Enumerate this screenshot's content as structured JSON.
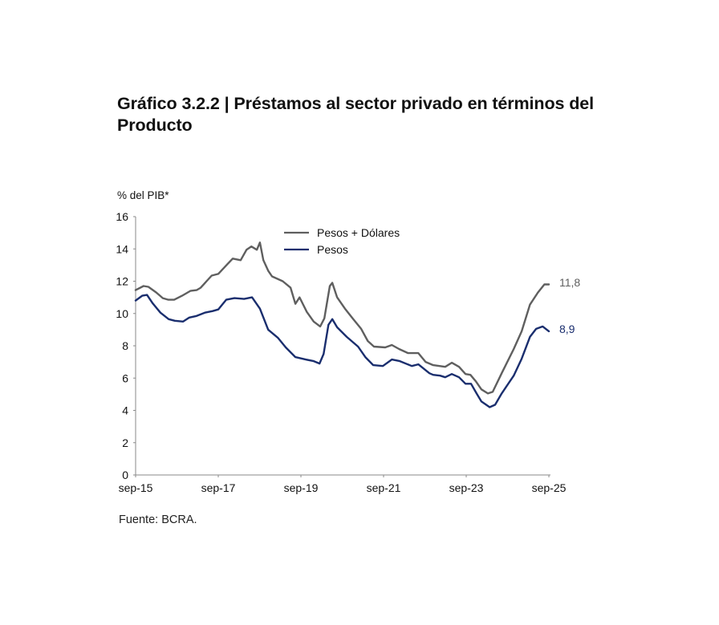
{
  "title": "Gráfico 3.2.2 | Préstamos al sector privado en términos del Producto",
  "source": "Fuente: BCRA.",
  "chart_data": {
    "type": "line",
    "title": "Gráfico 3.2.2 | Préstamos al sector privado en términos del Producto",
    "xlabel": "",
    "ylabel": "% del PIB*",
    "ylim": [
      0,
      16
    ],
    "yticks": [
      "0",
      "2",
      "4",
      "6",
      "8",
      "10",
      "12",
      "14",
      "16"
    ],
    "xlim_months_since_sep15": [
      0,
      120
    ],
    "xticks": [
      {
        "label": "sep-15",
        "month": 0
      },
      {
        "label": "sep-17",
        "month": 24
      },
      {
        "label": "sep-19",
        "month": 48
      },
      {
        "label": "sep-21",
        "month": 72
      },
      {
        "label": "sep-23",
        "month": 96
      },
      {
        "label": "sep-25",
        "month": 120
      }
    ],
    "grid": false,
    "legend_position": "top-center",
    "x_unit": "months since sep-15",
    "series": [
      {
        "name": "Pesos + Dólares",
        "color": "#5f5f5f",
        "end_label": "11,8",
        "points": [
          [
            0,
            11.45
          ],
          [
            2.3,
            11.7
          ],
          [
            3.7,
            11.65
          ],
          [
            6,
            11.3
          ],
          [
            7.9,
            10.95
          ],
          [
            9.5,
            10.85
          ],
          [
            11.2,
            10.85
          ],
          [
            13.5,
            11.1
          ],
          [
            15.9,
            11.4
          ],
          [
            17.7,
            11.45
          ],
          [
            18.9,
            11.6
          ],
          [
            20.8,
            12.05
          ],
          [
            22.1,
            12.35
          ],
          [
            24,
            12.45
          ],
          [
            26.6,
            13.05
          ],
          [
            28.2,
            13.4
          ],
          [
            30.5,
            13.3
          ],
          [
            32.2,
            13.95
          ],
          [
            33.6,
            14.15
          ],
          [
            35.2,
            13.95
          ],
          [
            36.1,
            14.4
          ],
          [
            37.1,
            13.3
          ],
          [
            38.5,
            12.65
          ],
          [
            39.6,
            12.3
          ],
          [
            42.7,
            12.0
          ],
          [
            45,
            11.6
          ],
          [
            46.4,
            10.6
          ],
          [
            47.6,
            11.0
          ],
          [
            49.7,
            10.1
          ],
          [
            51.7,
            9.5
          ],
          [
            53.6,
            9.2
          ],
          [
            54.8,
            9.7
          ],
          [
            56.4,
            11.7
          ],
          [
            57.1,
            11.9
          ],
          [
            58.5,
            11.0
          ],
          [
            60.8,
            10.3
          ],
          [
            63.2,
            9.65
          ],
          [
            65.5,
            9.05
          ],
          [
            67.4,
            8.3
          ],
          [
            69.2,
            7.95
          ],
          [
            72.5,
            7.9
          ],
          [
            74.4,
            8.05
          ],
          [
            76.5,
            7.8
          ],
          [
            79.1,
            7.55
          ],
          [
            82.1,
            7.55
          ],
          [
            84.2,
            7.0
          ],
          [
            86.4,
            6.8
          ],
          [
            89.9,
            6.7
          ],
          [
            91.8,
            6.95
          ],
          [
            93.9,
            6.7
          ],
          [
            95.8,
            6.25
          ],
          [
            97.2,
            6.2
          ],
          [
            98.8,
            5.8
          ],
          [
            100.4,
            5.3
          ],
          [
            102.3,
            5.05
          ],
          [
            103.7,
            5.15
          ],
          [
            106.3,
            6.3
          ],
          [
            109.8,
            7.8
          ],
          [
            112.1,
            8.9
          ],
          [
            114.5,
            10.55
          ],
          [
            116.8,
            11.3
          ],
          [
            118.7,
            11.8
          ],
          [
            120,
            11.8
          ]
        ]
      },
      {
        "name": "Pesos",
        "color": "#1a2e6e",
        "end_label": "8,9",
        "points": [
          [
            0,
            10.8
          ],
          [
            1.9,
            11.1
          ],
          [
            3.3,
            11.15
          ],
          [
            4.9,
            10.65
          ],
          [
            7.2,
            10.05
          ],
          [
            9.6,
            9.65
          ],
          [
            11.4,
            9.55
          ],
          [
            13.8,
            9.5
          ],
          [
            15.6,
            9.75
          ],
          [
            17.7,
            9.85
          ],
          [
            20.1,
            10.05
          ],
          [
            22.4,
            10.15
          ],
          [
            24,
            10.25
          ],
          [
            26.3,
            10.85
          ],
          [
            28.7,
            10.95
          ],
          [
            31.5,
            10.9
          ],
          [
            33.8,
            11.0
          ],
          [
            36.1,
            10.3
          ],
          [
            38.5,
            9.0
          ],
          [
            41.3,
            8.5
          ],
          [
            43.6,
            7.9
          ],
          [
            46.4,
            7.3
          ],
          [
            49.4,
            7.15
          ],
          [
            51.7,
            7.05
          ],
          [
            53.4,
            6.9
          ],
          [
            54.6,
            7.5
          ],
          [
            56.0,
            9.3
          ],
          [
            57.1,
            9.65
          ],
          [
            58.5,
            9.15
          ],
          [
            61.3,
            8.55
          ],
          [
            64.6,
            7.95
          ],
          [
            66.7,
            7.3
          ],
          [
            69.0,
            6.8
          ],
          [
            71.8,
            6.75
          ],
          [
            74.4,
            7.15
          ],
          [
            76.7,
            7.05
          ],
          [
            80.2,
            6.75
          ],
          [
            82.1,
            6.85
          ],
          [
            85.3,
            6.3
          ],
          [
            88.4,
            6.15
          ],
          [
            86.4,
            6.2
          ],
          [
            89.9,
            6.05
          ],
          [
            91.8,
            6.25
          ],
          [
            93.9,
            6.05
          ],
          [
            95.8,
            5.65
          ],
          [
            97.4,
            5.65
          ],
          [
            99.0,
            5.05
          ],
          [
            100.4,
            4.55
          ],
          [
            102.8,
            4.2
          ],
          [
            104.4,
            4.35
          ],
          [
            106.3,
            5.05
          ],
          [
            109.8,
            6.15
          ],
          [
            112.1,
            7.2
          ],
          [
            114.5,
            8.55
          ],
          [
            116.3,
            9.05
          ],
          [
            118.2,
            9.2
          ],
          [
            120,
            8.9
          ]
        ]
      }
    ]
  }
}
